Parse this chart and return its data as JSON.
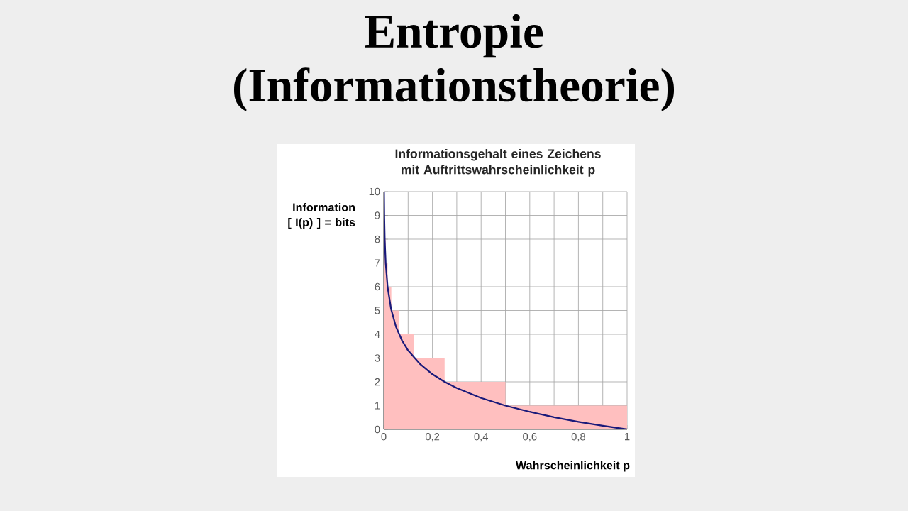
{
  "chart_data": {
    "type": "line",
    "title": "Entropie (Informationstheorie)",
    "subtitle": "Informationsgehalt eines Zeichens mit Auftrittswahrscheinlichkeit p",
    "xlabel": "Wahrscheinlichkeit p",
    "ylabel": "Information [ I(p) ] = bits",
    "xlim": [
      0,
      1
    ],
    "ylim": [
      0,
      10
    ],
    "xticks": [
      0,
      {
        "value": 0.1,
        "label": null
      },
      {
        "value": 0.2,
        "label": "0,2"
      },
      {
        "value": 0.3,
        "label": null
      },
      {
        "value": 0.4,
        "label": "0,4"
      },
      {
        "value": 0.5,
        "label": null
      },
      {
        "value": 0.6,
        "label": "0,6"
      },
      {
        "value": 0.7,
        "label": null
      },
      {
        "value": 0.8,
        "label": "0,8"
      },
      {
        "value": 0.9,
        "label": null
      },
      1
    ],
    "yticks": [
      0,
      1,
      2,
      3,
      4,
      5,
      6,
      7,
      8,
      9,
      10
    ],
    "grid": true,
    "series": [
      {
        "type": "area",
        "color": "#ffbfbf",
        "x": [
          0,
          0.0078,
          0.0078,
          0.016,
          0.016,
          0.031,
          0.031,
          0.063,
          0.063,
          0.125,
          0.125,
          0.25,
          0.25,
          0.5,
          0.5,
          1
        ],
        "values": [
          8,
          8,
          7,
          7,
          6,
          6,
          5,
          5,
          4,
          4,
          3,
          3,
          2,
          2,
          1,
          1
        ]
      },
      {
        "color": "#1a1a7a",
        "x": [
          0.001,
          0.002,
          0.004,
          0.008,
          0.016,
          0.03,
          0.05,
          0.075,
          0.1,
          0.15,
          0.2,
          0.25,
          0.3,
          0.4,
          0.5,
          0.6,
          0.7,
          0.8,
          0.9,
          1
        ],
        "values": [
          10,
          8.97,
          7.97,
          6.97,
          5.97,
          5.06,
          4.32,
          3.74,
          3.32,
          2.74,
          2.32,
          2,
          1.74,
          1.32,
          1,
          0.74,
          0.51,
          0.32,
          0.15,
          0
        ]
      }
    ]
  }
}
